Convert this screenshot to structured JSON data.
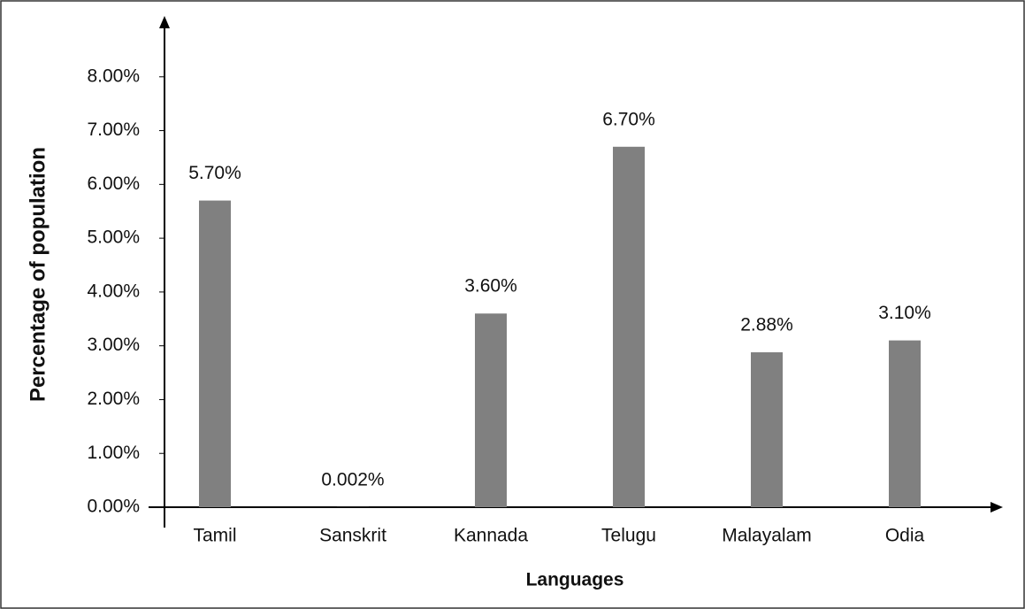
{
  "chart_data": {
    "type": "bar",
    "categories": [
      "Tamil",
      "Sanskrit",
      "Kannada",
      "Telugu",
      "Malayalam",
      "Odia"
    ],
    "values": [
      5.7,
      0.002,
      3.6,
      6.7,
      2.88,
      3.1
    ],
    "value_labels": [
      "5.70%",
      "0.002%",
      "3.60%",
      "6.70%",
      "2.88%",
      "3.10%"
    ],
    "color": "#808080",
    "x_label": "Languages",
    "y_label": "Percentage of population",
    "ylim": [
      0,
      9
    ],
    "yticks": [
      {
        "value": 0,
        "label": "0.00%"
      },
      {
        "value": 1,
        "label": "1.00%"
      },
      {
        "value": 2,
        "label": "2.00%"
      },
      {
        "value": 3,
        "label": "3.00%"
      },
      {
        "value": 4,
        "label": "4.00%"
      },
      {
        "value": 5,
        "label": "5.00%"
      },
      {
        "value": 6,
        "label": "6.00%"
      },
      {
        "value": 7,
        "label": "7.00%"
      },
      {
        "value": 8,
        "label": "8.00%"
      }
    ],
    "grid": false
  }
}
